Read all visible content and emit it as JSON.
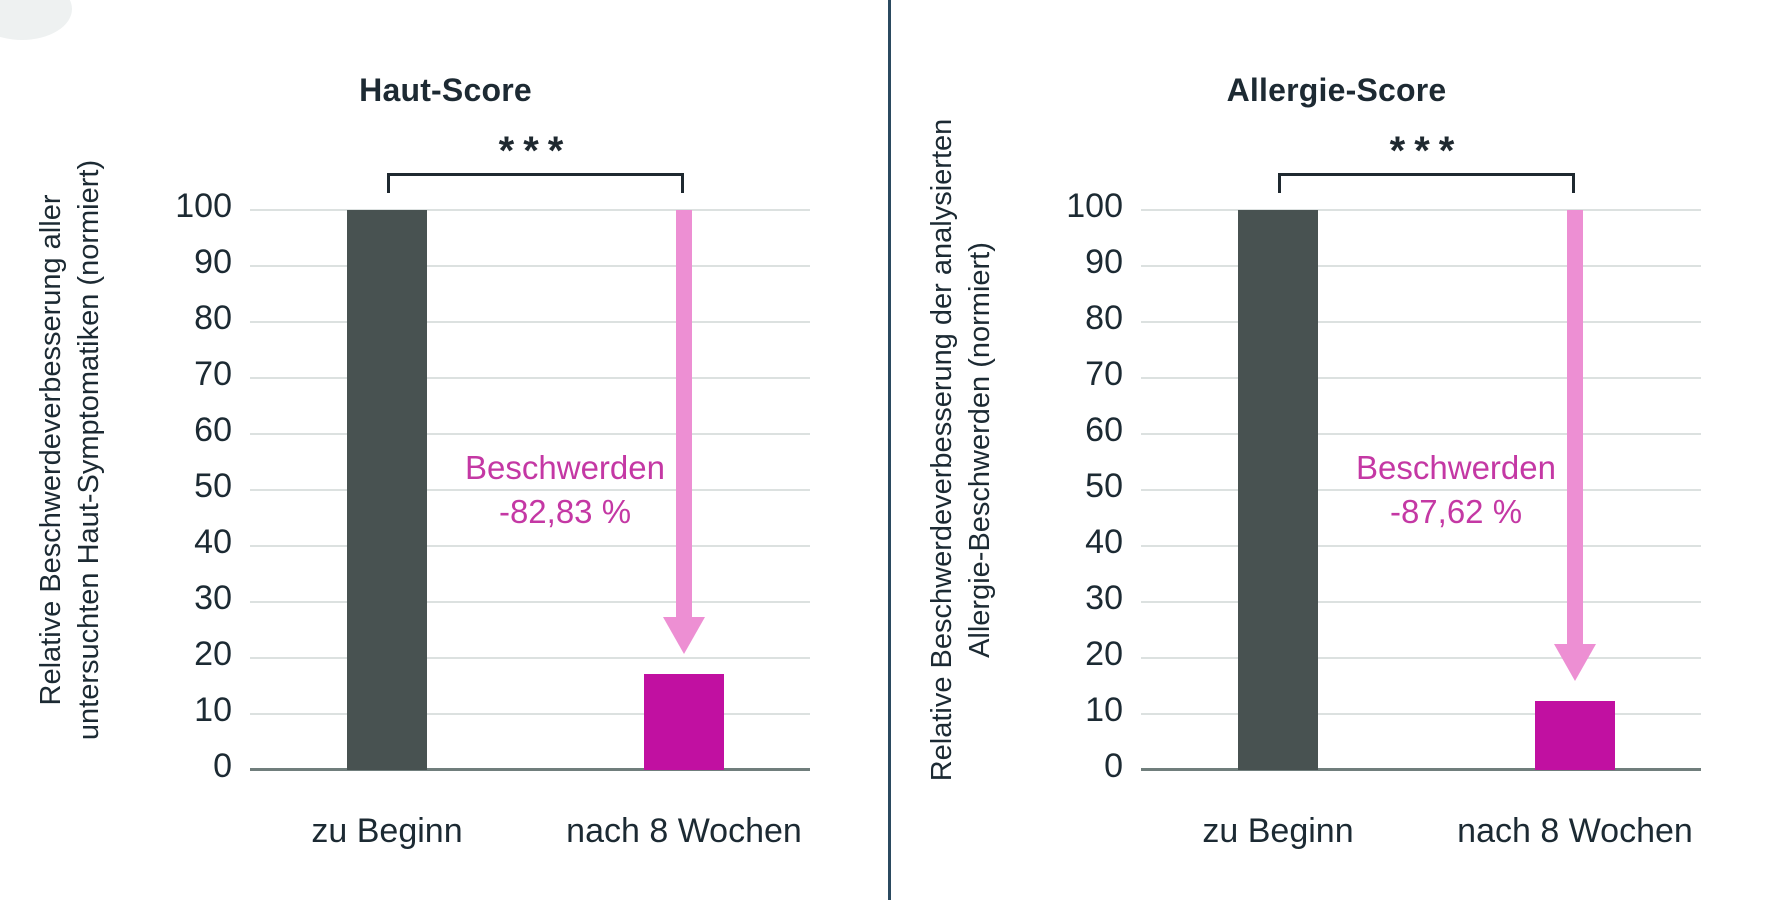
{
  "page": {
    "background": "#ffffff",
    "divider_color": "#2b4a60",
    "text_color": "#1c2a33",
    "gridline_color": "#dce1e0",
    "baseline_color": "#707e7c"
  },
  "chart_data": [
    {
      "type": "bar",
      "title": "Haut-Score",
      "significance": "***",
      "ylabel_line1": "Relative Beschwerdeverbesserung aller",
      "ylabel_line2": "untersuchten Haut-Symptomatiken (normiert)",
      "categories": [
        "zu Beginn",
        "nach 8 Wochen"
      ],
      "values": [
        100,
        17.2
      ],
      "annotation_line1": "Beschwerden",
      "annotation_line2": "-82,83 %",
      "ylim": [
        0,
        100
      ],
      "ytick_step": 10,
      "grid": true,
      "legend": "none",
      "bar_colors": [
        "#485251",
        "#c110a1"
      ],
      "arrow": "down-from-100-to-second-bar",
      "arrow_color": "#ed8fd3",
      "annotation_color": "#c438a4"
    },
    {
      "type": "bar",
      "title": "Allergie-Score",
      "significance": "***",
      "ylabel_line1": "Relative Beschwerdeverbesserung der analysierten",
      "ylabel_line2": "Allergie-Beschwerden (normiert)",
      "categories": [
        "zu Beginn",
        "nach 8 Wochen"
      ],
      "values": [
        100,
        12.4
      ],
      "annotation_line1": "Beschwerden",
      "annotation_line2": "-87,62 %",
      "ylim": [
        0,
        100
      ],
      "ytick_step": 10,
      "grid": true,
      "legend": "none",
      "bar_colors": [
        "#485251",
        "#c110a1"
      ],
      "arrow": "down-from-100-to-second-bar",
      "arrow_color": "#ed8fd3",
      "annotation_color": "#c438a4"
    }
  ]
}
